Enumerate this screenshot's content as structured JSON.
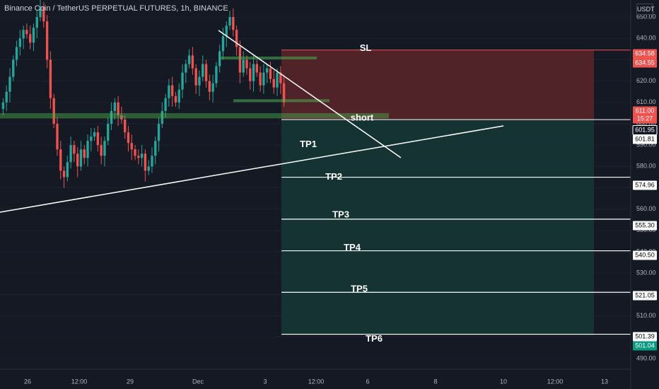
{
  "title": "Binance Coin / TetherUS PERPETUAL FUTURES, 1h, BINANCE",
  "currency": "USDT",
  "colors": {
    "background": "#151924",
    "up": "#26a69a",
    "down": "#ef5350",
    "risk_zone": "#5b2629",
    "reward_zone": "#153535",
    "line": "#ffffff",
    "support_band": "#4caf50",
    "grid": "#1f2330"
  },
  "chart_data": {
    "type": "candlestick",
    "symbol": "BNBUSDT.P",
    "interval": "1h",
    "exchange": "BINANCE",
    "x_ticks": [
      "26",
      "12:00",
      "29",
      "Dec",
      "3",
      "12:00",
      "6",
      "8",
      "10",
      "12:00",
      "13"
    ],
    "y_ticks": [
      650,
      640,
      630,
      620,
      610,
      600,
      590,
      580,
      570,
      560,
      550,
      540,
      530,
      520,
      510,
      500,
      490
    ],
    "ylim": [
      485,
      658
    ],
    "price_labels": [
      {
        "text": "634.58",
        "value": 634.58,
        "kind": "red"
      },
      {
        "text": "634.55",
        "value": 634.55,
        "kind": "red"
      },
      {
        "text": "611.00",
        "value": 611.0,
        "kind": "red"
      },
      {
        "text": "15:27",
        "value": 610.0,
        "kind": "red"
      },
      {
        "text": "601.95",
        "value": 601.95,
        "kind": "dark"
      },
      {
        "text": "601.81",
        "value": 601.81,
        "kind": "white"
      },
      {
        "text": "574.96",
        "value": 574.96,
        "kind": "white"
      },
      {
        "text": "555.30",
        "value": 555.3,
        "kind": "white"
      },
      {
        "text": "540.50",
        "value": 540.5,
        "kind": "white"
      },
      {
        "text": "521.05",
        "value": 521.05,
        "kind": "white"
      },
      {
        "text": "501.39",
        "value": 501.39,
        "kind": "white"
      },
      {
        "text": "501.04",
        "value": 501.04,
        "kind": "teal"
      }
    ],
    "position": {
      "side": "short",
      "entry": 601.95,
      "stop_loss": 634.55,
      "target": 501.04
    },
    "annotations": [
      {
        "text": "SL",
        "value": 634.55
      },
      {
        "text": "short",
        "value": 601.95
      },
      {
        "text": "TP1",
        "value": 601.81
      },
      {
        "text": "TP2",
        "value": 574.96
      },
      {
        "text": "TP3",
        "value": 555.3
      },
      {
        "text": "TP4",
        "value": 540.5
      },
      {
        "text": "TP5",
        "value": 521.05
      },
      {
        "text": "TP6",
        "value": 501.39
      }
    ],
    "support_zone": [
      602.5,
      605.0
    ],
    "close": [
      610,
      615,
      622,
      630,
      636,
      640,
      644,
      642,
      638,
      645,
      650,
      655,
      648,
      630,
      612,
      600,
      588,
      578,
      575,
      582,
      590,
      586,
      580,
      588,
      584,
      592,
      594,
      596,
      590,
      585,
      592,
      600,
      606,
      610,
      604,
      602,
      596,
      591,
      588,
      585,
      584,
      586,
      578,
      580,
      585,
      592,
      600,
      606,
      612,
      618,
      613,
      610,
      616,
      624,
      628,
      632,
      626,
      618,
      622,
      628,
      620,
      615,
      619,
      627,
      634,
      641,
      646,
      650,
      644,
      636,
      624,
      630,
      626,
      620,
      628,
      624,
      618,
      624,
      626,
      621,
      617,
      624,
      619,
      610
    ]
  }
}
